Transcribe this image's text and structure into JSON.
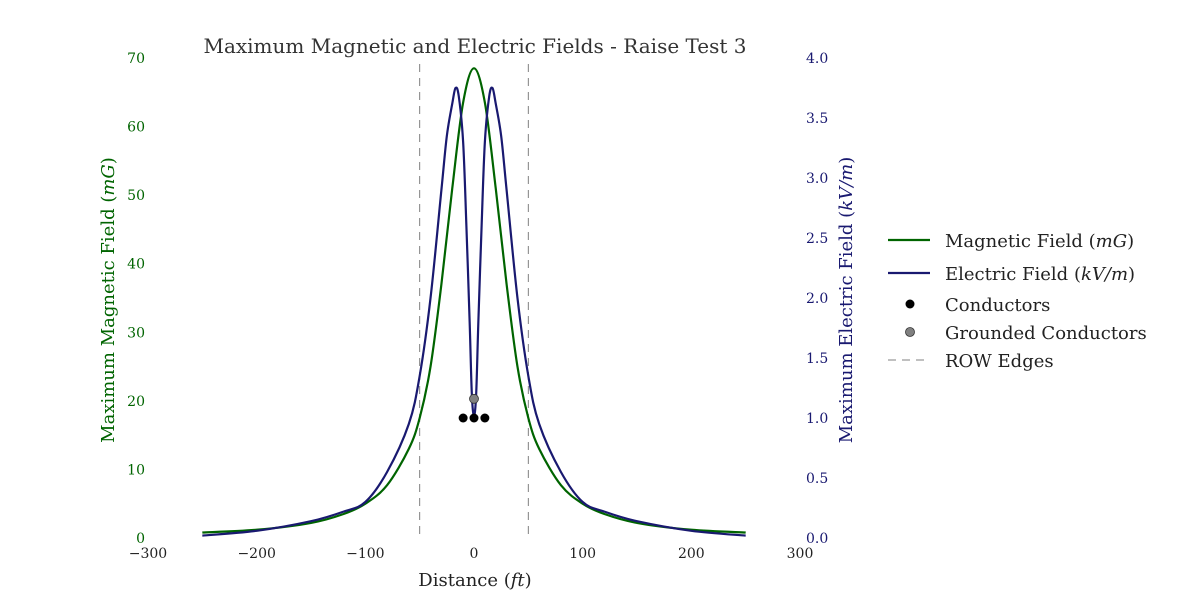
{
  "chart_data": {
    "type": "line",
    "title": "Maximum Magnetic and Electric Fields - Raise Test 3",
    "xlabel": {
      "text": "Distance (",
      "unit": "ft",
      "suffix": ")"
    },
    "ylabel_left": {
      "text": "Maximum Magnetic Field (",
      "unit": "mG",
      "suffix": ")"
    },
    "ylabel_right": {
      "text": "Maximum Electric Field (",
      "unit": "kV/m",
      "suffix": ")"
    },
    "xlim": [
      -300,
      300
    ],
    "ylim_left": [
      0,
      70
    ],
    "ylim_right": [
      0,
      4.0
    ],
    "xticks": [
      -300,
      -200,
      -100,
      0,
      100,
      200,
      300
    ],
    "xtick_labels": [
      "−300",
      "−200",
      "−100",
      "0",
      "100",
      "200",
      "300"
    ],
    "yticks_left": [
      "0",
      "10",
      "20",
      "30",
      "40",
      "50",
      "60",
      "70"
    ],
    "yticks_right": [
      "0.0",
      "0.5",
      "1.0",
      "1.5",
      "2.0",
      "2.5",
      "3.0",
      "3.5",
      "4.0"
    ],
    "grid": false,
    "legend_position": "right",
    "series": [
      {
        "name": "Magnetic Field",
        "unit": "mG",
        "axis": "left",
        "color": "#006400",
        "x": [
          -250,
          -200,
          -150,
          -120,
          -100,
          -80,
          -60,
          -50,
          -40,
          -30,
          -20,
          -10,
          0,
          10,
          20,
          30,
          40,
          50,
          60,
          80,
          100,
          120,
          150,
          200,
          250
        ],
        "y": [
          0.8,
          1.2,
          2.2,
          3.5,
          5.0,
          7.7,
          13.0,
          17.5,
          25.0,
          37.0,
          51.0,
          63.5,
          68.5,
          63.5,
          51.0,
          37.0,
          25.0,
          17.5,
          13.0,
          7.7,
          5.0,
          3.5,
          2.2,
          1.2,
          0.8
        ]
      },
      {
        "name": "Electric Field",
        "unit": "kV/m",
        "axis": "right",
        "color": "#191970",
        "x": [
          -250,
          -200,
          -150,
          -120,
          -100,
          -80,
          -60,
          -50,
          -40,
          -30,
          -25,
          -20,
          -17,
          -14,
          -10,
          -7,
          -4,
          -2,
          0,
          2,
          4,
          7,
          10,
          14,
          17,
          20,
          25,
          30,
          40,
          50,
          60,
          80,
          100,
          120,
          150,
          200,
          250
        ],
        "y": [
          0.02,
          0.06,
          0.14,
          0.22,
          0.3,
          0.55,
          0.95,
          1.35,
          2.0,
          2.9,
          3.35,
          3.62,
          3.75,
          3.68,
          3.3,
          2.6,
          1.8,
          1.2,
          1.02,
          1.2,
          1.8,
          2.6,
          3.3,
          3.68,
          3.75,
          3.62,
          3.35,
          2.9,
          2.0,
          1.35,
          0.95,
          0.55,
          0.3,
          0.22,
          0.14,
          0.06,
          0.02
        ]
      }
    ],
    "conductors": {
      "name": "Conductors",
      "color": "#000000",
      "points": [
        {
          "x": -10,
          "y": 17.5
        },
        {
          "x": 0,
          "y": 17.5
        },
        {
          "x": 10,
          "y": 17.5
        }
      ]
    },
    "grounded_conductors": {
      "name": "Grounded Conductors",
      "color": "#808080",
      "points": [
        {
          "x": 0,
          "y": 20.3
        }
      ]
    },
    "row_edges": {
      "name": "ROW Edges",
      "color": "#808080",
      "x": [
        -50,
        50
      ]
    }
  }
}
